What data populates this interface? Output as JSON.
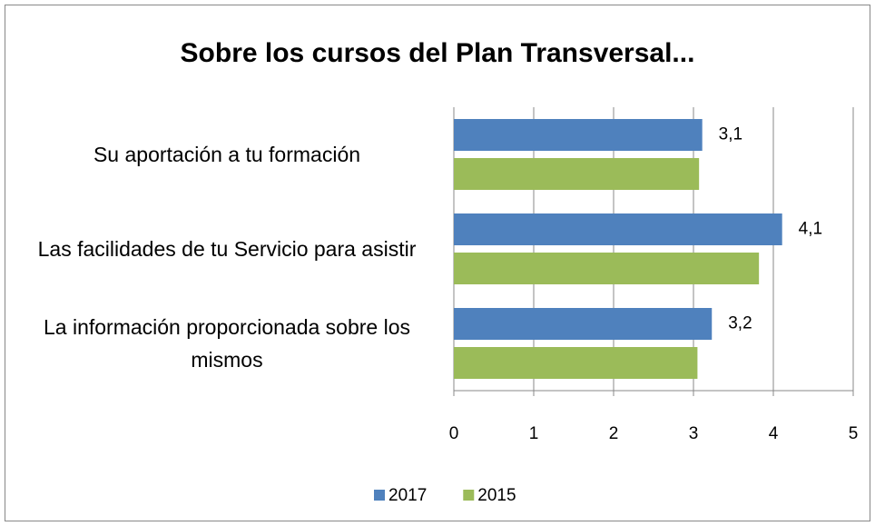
{
  "chart_data": {
    "type": "barh",
    "title": "Sobre los cursos del Plan Transversal...",
    "categories": [
      "Su aportación a tu formación",
      "Las facilidades de tu Servicio para asistir",
      "La información proporcionada sobre los mismos"
    ],
    "series": [
      {
        "name": "2017",
        "color": "#4f81bd",
        "values": [
          3.11,
          4.11,
          3.23
        ],
        "value_labels": [
          "3,1",
          "4,1",
          "3,2"
        ]
      },
      {
        "name": "2015",
        "color": "#9bbb59",
        "values": [
          3.07,
          3.82,
          3.05
        ]
      }
    ],
    "xlim": [
      0,
      5
    ],
    "xticks": [
      0,
      1,
      2,
      3,
      4,
      5
    ],
    "grid": true,
    "legend": "bottom"
  }
}
